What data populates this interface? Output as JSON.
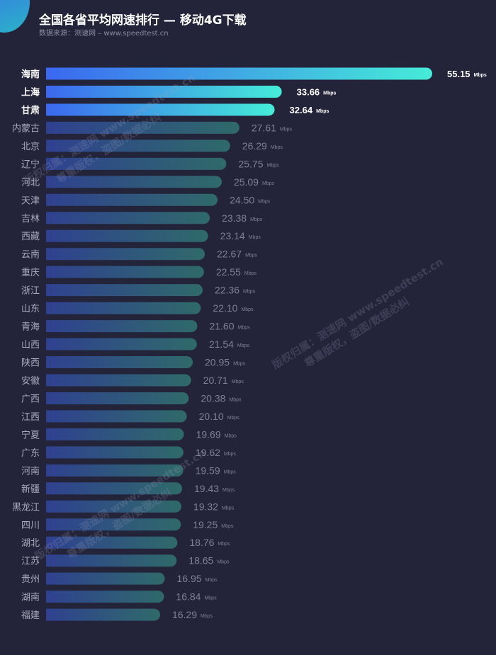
{
  "header": {
    "title": "全国各省平均网速排行 — 移动4G下载",
    "source": "数据来源：测速网 – www.speedtest.cn"
  },
  "watermark": {
    "line1": "版权归属：测速网 www.speedtest.cn",
    "line2": "尊重版权，盗图/数据必纠"
  },
  "colors": {
    "background": "#23233a",
    "highlight_start": "#3b68f0",
    "highlight_end": "#45ecd8",
    "dim_start": "#2f4190",
    "dim_end": "#2f6a6a"
  },
  "chart_data": {
    "type": "bar",
    "orientation": "horizontal",
    "title": "全国各省平均网速排行 — 移动4G下载",
    "unit": "Mbps",
    "categories": [
      "海南",
      "上海",
      "甘肃",
      "内蒙古",
      "北京",
      "辽宁",
      "河北",
      "天津",
      "吉林",
      "西藏",
      "云南",
      "重庆",
      "浙江",
      "山东",
      "青海",
      "山西",
      "陕西",
      "安徽",
      "广西",
      "江西",
      "宁夏",
      "广东",
      "河南",
      "新疆",
      "黑龙江",
      "四川",
      "湖北",
      "江苏",
      "贵州",
      "湖南",
      "福建"
    ],
    "values": [
      55.15,
      33.66,
      32.64,
      27.61,
      26.29,
      25.75,
      25.09,
      24.5,
      23.38,
      23.14,
      22.67,
      22.55,
      22.36,
      22.1,
      21.6,
      21.54,
      20.95,
      20.71,
      20.38,
      20.1,
      19.69,
      19.62,
      19.59,
      19.43,
      19.32,
      19.25,
      18.76,
      18.65,
      16.95,
      16.84,
      16.29
    ],
    "highlighted_count": 3,
    "xlim": [
      0,
      55.15
    ]
  }
}
